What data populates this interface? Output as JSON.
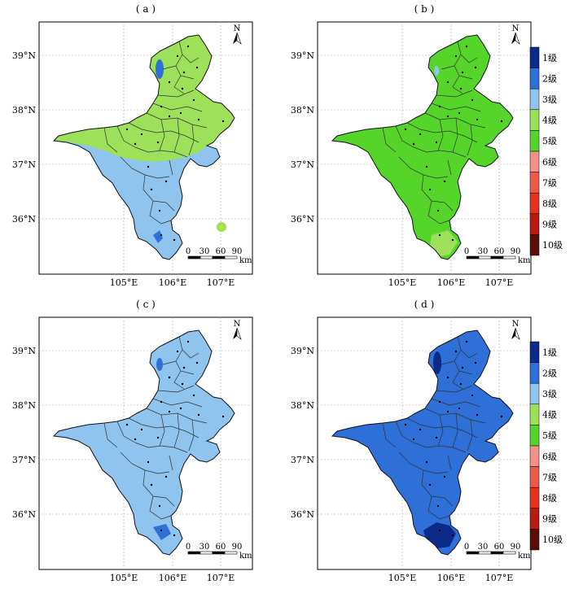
{
  "panels": [
    {
      "id": "a",
      "title": "( a )",
      "zones": [
        {
          "color": "#9de05a",
          "path": "north"
        },
        {
          "color": "#8ec4ee",
          "path": "south"
        }
      ]
    },
    {
      "id": "b",
      "title": "( b )",
      "zones": [
        {
          "color": "#55d52a",
          "path": "full"
        }
      ]
    },
    {
      "id": "c",
      "title": "( c )",
      "zones": [
        {
          "color": "#8ec4ee",
          "path": "full"
        }
      ]
    },
    {
      "id": "d",
      "title": "( d )",
      "zones": [
        {
          "color": "#2f6fd8",
          "path": "full"
        }
      ]
    }
  ],
  "lat_labels": [
    "39°N",
    "38°N",
    "37°N",
    "36°N"
  ],
  "lon_labels": [
    "105°E",
    "106°E",
    "107°E"
  ],
  "north_arrow_label": "N",
  "scalebar": {
    "ticks": [
      "0",
      "30",
      "60",
      "90"
    ],
    "unit": "km"
  },
  "legend": {
    "items": [
      {
        "label": "1级",
        "color": "#0b2a8a"
      },
      {
        "label": "2级",
        "color": "#2f6fd8"
      },
      {
        "label": "3级",
        "color": "#8ec4ee"
      },
      {
        "label": "4级",
        "color": "#9de05a"
      },
      {
        "label": "5级",
        "color": "#55d52a"
      },
      {
        "label": "6级",
        "color": "#f2908c"
      },
      {
        "label": "7级",
        "color": "#ee5a4a"
      },
      {
        "label": "8级",
        "color": "#e8301e"
      },
      {
        "label": "9级",
        "color": "#b81a10"
      },
      {
        "label": "10级",
        "color": "#5a0d08"
      }
    ]
  }
}
